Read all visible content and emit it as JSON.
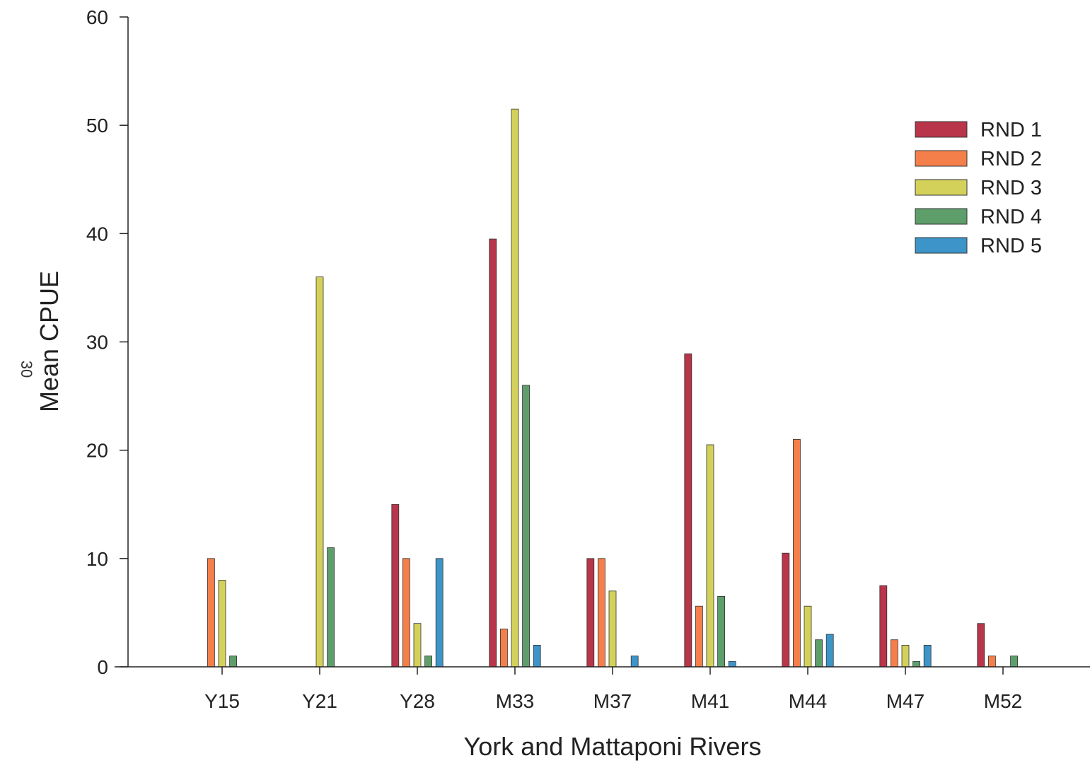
{
  "page_mark": "30",
  "chart_data": {
    "type": "bar",
    "title": "",
    "xlabel": "York and Mattaponi Rivers",
    "ylabel": "Mean CPUE",
    "ylim": [
      0,
      60
    ],
    "yticks": [
      0,
      10,
      20,
      30,
      40,
      50,
      60
    ],
    "grid": false,
    "legend_position": "top-right",
    "categories": [
      "Y15",
      "Y21",
      "Y28",
      "M33",
      "M37",
      "M41",
      "M44",
      "M47",
      "M52"
    ],
    "series": [
      {
        "name": "RND 1",
        "color": "#b8354a",
        "values": [
          0,
          0,
          15,
          39.5,
          10,
          28.9,
          10.5,
          7.5,
          4
        ]
      },
      {
        "name": "RND 2",
        "color": "#f47f4a",
        "values": [
          10,
          0,
          10,
          3.5,
          10,
          5.6,
          21,
          2.5,
          1
        ]
      },
      {
        "name": "RND 3",
        "color": "#d4d15a",
        "values": [
          8,
          36,
          4,
          51.5,
          7,
          20.5,
          5.6,
          2,
          0
        ]
      },
      {
        "name": "RND 4",
        "color": "#5e9e6b",
        "values": [
          1,
          11,
          1,
          26,
          0,
          6.5,
          2.5,
          0.5,
          1
        ]
      },
      {
        "name": "RND 5",
        "color": "#3d94c8",
        "values": [
          0,
          0,
          10,
          2,
          1,
          0.5,
          3,
          2,
          0
        ]
      }
    ]
  }
}
